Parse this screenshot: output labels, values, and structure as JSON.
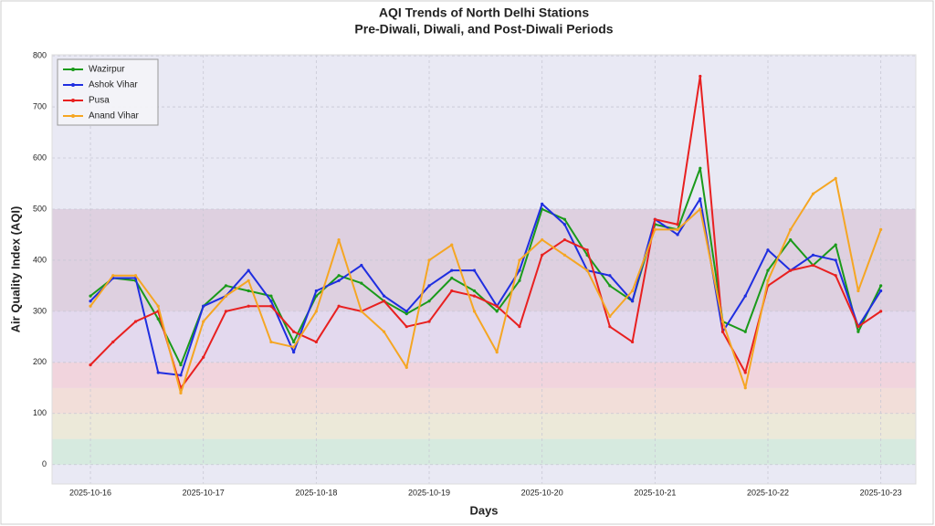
{
  "chart_data": {
    "type": "line",
    "title": "AQI Trends of North Delhi Stations",
    "subtitle": "Pre-Diwali, Diwali, and Post-Diwali Periods",
    "xlabel": "Days",
    "ylabel": "Air Quality Index (AQI)",
    "x": [
      0,
      0.2,
      0.4,
      0.6,
      0.8,
      1,
      1.2,
      1.4,
      1.6,
      1.8,
      2,
      2.2,
      2.4,
      2.6,
      2.8,
      3,
      3.2,
      3.4,
      3.6,
      3.8,
      4,
      4.2,
      4.4,
      4.6,
      4.8,
      5,
      5.2,
      5.4,
      5.6,
      5.8,
      6,
      6.2,
      6.4,
      6.6,
      6.8,
      7
    ],
    "series": [
      {
        "name": "Wazirpur",
        "color": "#1a9a1a",
        "values": [
          330,
          365,
          360,
          285,
          195,
          310,
          350,
          340,
          330,
          240,
          330,
          370,
          355,
          320,
          295,
          320,
          365,
          340,
          300,
          360,
          500,
          480,
          410,
          350,
          320,
          470,
          460,
          580,
          280,
          260,
          380,
          440,
          390,
          430,
          260,
          350
        ]
      },
      {
        "name": "Ashok Vihar",
        "color": "#1f2ee0",
        "values": [
          320,
          365,
          365,
          180,
          175,
          310,
          330,
          380,
          320,
          220,
          340,
          360,
          390,
          330,
          300,
          350,
          380,
          380,
          310,
          380,
          510,
          470,
          380,
          370,
          320,
          480,
          450,
          520,
          260,
          330,
          420,
          380,
          410,
          400,
          270,
          340
        ]
      },
      {
        "name": "Pusa",
        "color": "#e82020",
        "values": [
          195,
          240,
          280,
          300,
          150,
          210,
          300,
          310,
          310,
          260,
          240,
          310,
          300,
          320,
          270,
          280,
          340,
          330,
          310,
          270,
          410,
          440,
          420,
          270,
          240,
          480,
          470,
          760,
          260,
          180,
          350,
          380,
          390,
          370,
          270,
          300
        ]
      },
      {
        "name": "Anand Vihar",
        "color": "#f5a623",
        "values": [
          310,
          370,
          370,
          310,
          140,
          280,
          330,
          360,
          240,
          230,
          300,
          440,
          300,
          260,
          190,
          400,
          430,
          300,
          220,
          400,
          440,
          410,
          380,
          290,
          340,
          460,
          460,
          500,
          280,
          150,
          360,
          460,
          530,
          560,
          340,
          460
        ]
      }
    ],
    "bands": [
      {
        "from": 0,
        "to": 50,
        "color": "#d2eadb"
      },
      {
        "from": 50,
        "to": 100,
        "color": "#ece9d4"
      },
      {
        "from": 100,
        "to": 150,
        "color": "#f3dcd4"
      },
      {
        "from": 150,
        "to": 200,
        "color": "#f2d0d8"
      },
      {
        "from": 200,
        "to": 300,
        "color": "#e2d6ec"
      },
      {
        "from": 300,
        "to": 500,
        "color": "#dccbdc"
      }
    ],
    "xlim": [
      -0.34,
      7.31
    ],
    "ylim": [
      -38,
      802
    ],
    "xticks": [
      {
        "value": 0,
        "label": "2025-10-16"
      },
      {
        "value": 1,
        "label": "2025-10-17"
      },
      {
        "value": 2,
        "label": "2025-10-18"
      },
      {
        "value": 3,
        "label": "2025-10-19"
      },
      {
        "value": 4,
        "label": "2025-10-20"
      },
      {
        "value": 5,
        "label": "2025-10-21"
      },
      {
        "value": 6,
        "label": "2025-10-22"
      },
      {
        "value": 7,
        "label": "2025-10-23"
      }
    ],
    "yticks": [
      0,
      100,
      200,
      300,
      400,
      500,
      600,
      700,
      800
    ],
    "grid": true,
    "legend": "upper left"
  }
}
